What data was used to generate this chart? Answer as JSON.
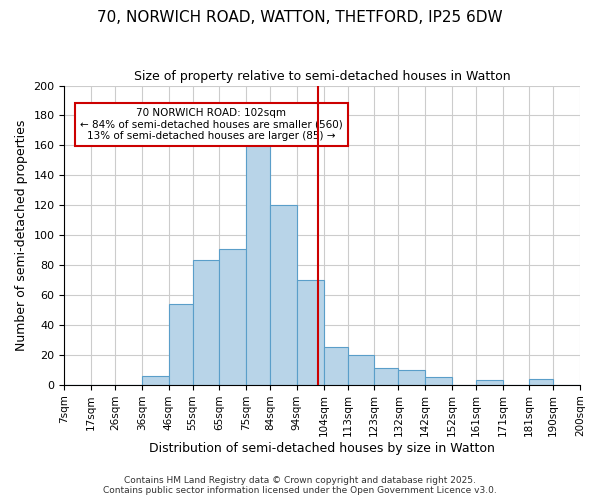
{
  "title": "70, NORWICH ROAD, WATTON, THETFORD, IP25 6DW",
  "subtitle": "Size of property relative to semi-detached houses in Watton",
  "xlabel": "Distribution of semi-detached houses by size in Watton",
  "ylabel": "Number of semi-detached properties",
  "bin_labels": [
    "7sqm",
    "17sqm",
    "26sqm",
    "36sqm",
    "46sqm",
    "55sqm",
    "65sqm",
    "75sqm",
    "84sqm",
    "94sqm",
    "104sqm",
    "113sqm",
    "123sqm",
    "132sqm",
    "142sqm",
    "152sqm",
    "161sqm",
    "171sqm",
    "181sqm",
    "190sqm",
    "200sqm"
  ],
  "bin_edges": [
    7,
    17,
    26,
    36,
    46,
    55,
    65,
    75,
    84,
    94,
    104,
    113,
    123,
    132,
    142,
    152,
    161,
    171,
    181,
    190,
    200
  ],
  "bar_heights": [
    0,
    0,
    0,
    6,
    54,
    83,
    91,
    164,
    120,
    70,
    25,
    20,
    11,
    10,
    5,
    0,
    3,
    0,
    4,
    0
  ],
  "bar_facecolor": "#b8d4e8",
  "bar_edgecolor": "#5a9ec9",
  "vline_x": 102,
  "vline_color": "#cc0000",
  "annotation_title": "70 NORWICH ROAD: 102sqm",
  "annotation_line1": "← 84% of semi-detached houses are smaller (560)",
  "annotation_line2": "13% of semi-detached houses are larger (85) →",
  "annotation_box_facecolor": "#ffffff",
  "annotation_box_edgecolor": "#cc0000",
  "ylim": [
    0,
    200
  ],
  "yticks": [
    0,
    20,
    40,
    60,
    80,
    100,
    120,
    140,
    160,
    180,
    200
  ],
  "footer_line1": "Contains HM Land Registry data © Crown copyright and database right 2025.",
  "footer_line2": "Contains public sector information licensed under the Open Government Licence v3.0.",
  "bg_color": "#ffffff",
  "grid_color": "#cccccc"
}
